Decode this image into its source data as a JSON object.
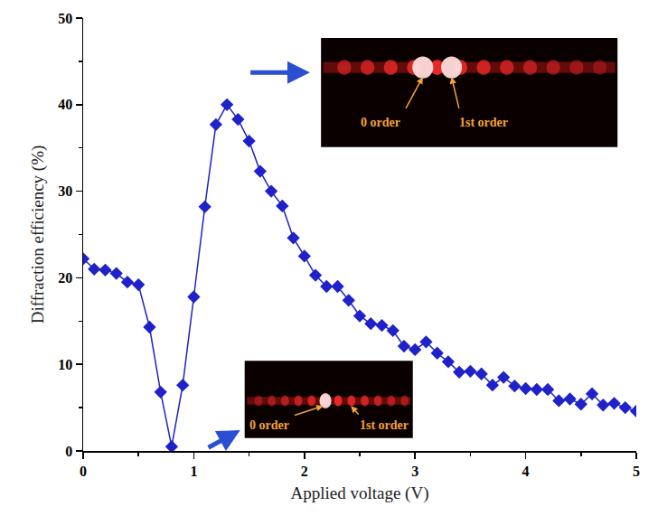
{
  "chart_data": {
    "type": "line",
    "x": [
      0,
      0.1,
      0.2,
      0.3,
      0.4,
      0.5,
      0.6,
      0.7,
      0.8,
      0.9,
      1.0,
      1.1,
      1.2,
      1.3,
      1.4,
      1.5,
      1.6,
      1.7,
      1.8,
      1.9,
      2.0,
      2.1,
      2.2,
      2.3,
      2.4,
      2.5,
      2.6,
      2.7,
      2.8,
      2.9,
      3.0,
      3.1,
      3.2,
      3.3,
      3.4,
      3.5,
      3.6,
      3.7,
      3.8,
      3.9,
      4.0,
      4.1,
      4.2,
      4.3,
      4.4,
      4.5,
      4.6,
      4.7,
      4.8,
      4.9,
      5.0
    ],
    "values": [
      22.2,
      21.0,
      20.9,
      20.5,
      19.5,
      19.2,
      14.3,
      6.8,
      0.5,
      7.6,
      17.8,
      28.2,
      37.7,
      40.0,
      38.3,
      35.8,
      32.3,
      30.0,
      28.3,
      24.6,
      22.5,
      20.3,
      19.0,
      19.0,
      17.4,
      15.6,
      14.7,
      14.5,
      13.9,
      12.1,
      11.7,
      12.6,
      11.3,
      10.3,
      9.1,
      9.2,
      8.9,
      7.6,
      8.5,
      7.5,
      7.2,
      7.1,
      7.1,
      5.8,
      6.0,
      5.4,
      6.6,
      5.3,
      5.5,
      5.0,
      4.6
    ],
    "color": "#1f22c8",
    "marker": "diamond",
    "line_style": "solid",
    "xlabel": "Applied voltage (V)",
    "ylabel": "Diffraction efficiency (%)",
    "xlim": [
      0,
      5
    ],
    "ylim": [
      0,
      50
    ],
    "xticks": [
      0,
      1,
      2,
      3,
      4,
      5
    ],
    "yticks": [
      0,
      10,
      20,
      30,
      40,
      50
    ],
    "grid": false,
    "insets": [
      {
        "labels": [
          "0 order",
          "1st order"
        ]
      },
      {
        "labels": [
          "0 order",
          "1st order"
        ]
      }
    ]
  }
}
